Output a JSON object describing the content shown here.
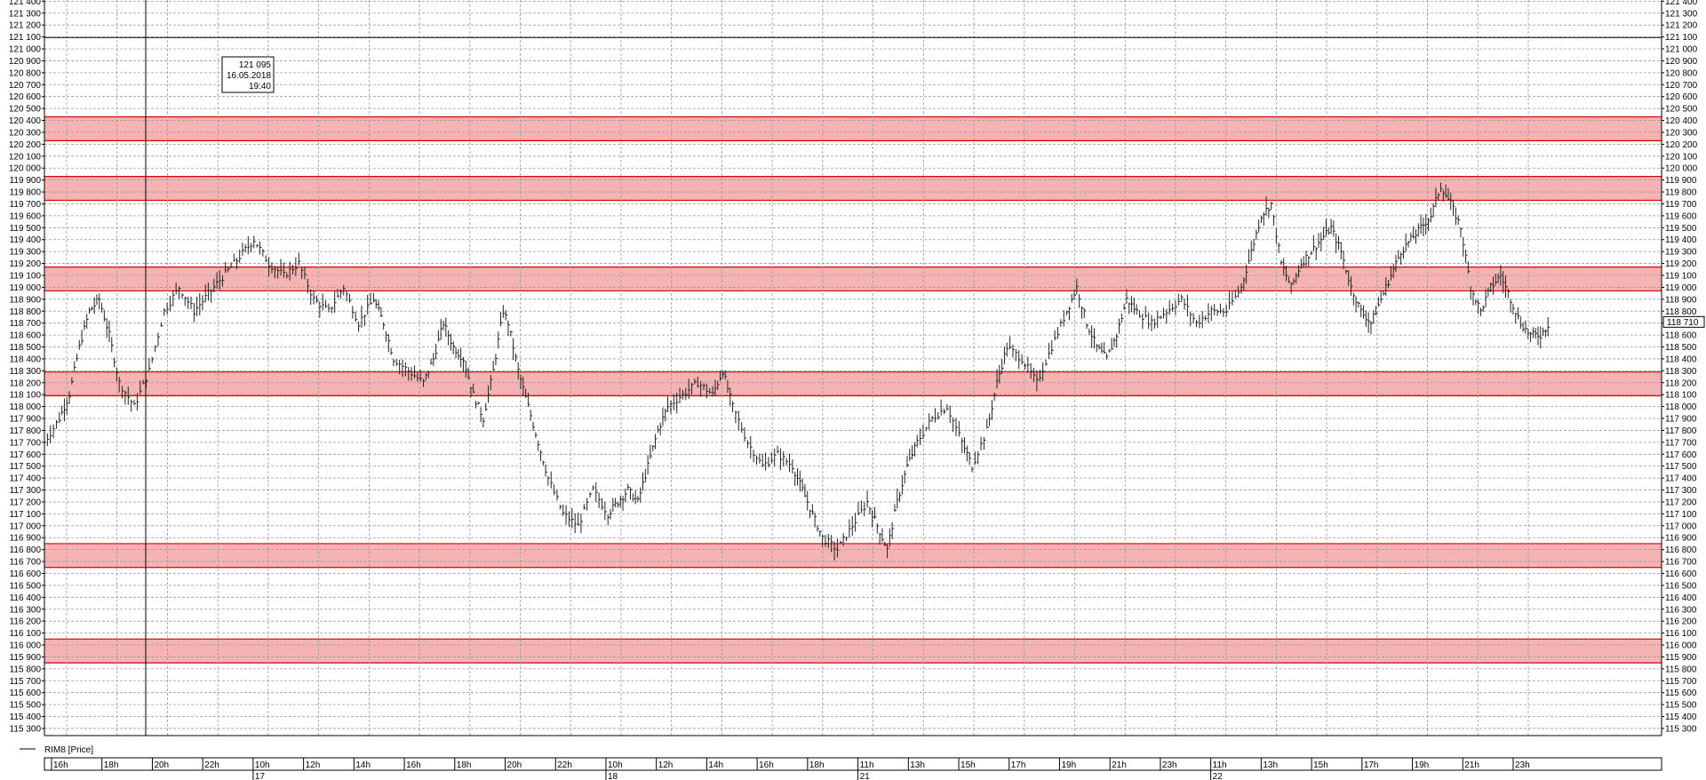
{
  "chart_data": {
    "type": "ohlc",
    "series_name": "RIM8 [Price]",
    "ylim": [
      115240,
      121410
    ],
    "y_tick_step": 100,
    "grid": true,
    "grid_style": "dashed",
    "last_price": 118710,
    "last_price_label": "118 710",
    "cursor": {
      "price": 121095,
      "date": "16.05.2018",
      "time": "19:40",
      "price_label": "121 095"
    },
    "levels": [
      {
        "low": 120230,
        "high": 120430,
        "color": "#f4a0a0"
      },
      {
        "low": 119730,
        "high": 119930,
        "color": "#f4a0a0"
      },
      {
        "low": 118970,
        "high": 119170,
        "color": "#f4a0a0"
      },
      {
        "low": 118090,
        "high": 118290,
        "color": "#f4a0a0"
      },
      {
        "low": 116650,
        "high": 116850,
        "color": "#f4a0a0"
      },
      {
        "low": 115850,
        "high": 116050,
        "color": "#f4a0a0"
      }
    ],
    "x_time_labels": [
      "16h",
      "18h",
      "20h",
      "22h",
      "10h",
      "12h",
      "14h",
      "16h",
      "18h",
      "20h",
      "22h",
      "10h",
      "12h",
      "14h",
      "16h",
      "18h",
      "11h",
      "13h",
      "15h",
      "17h",
      "19h",
      "21h",
      "23h",
      "11h",
      "13h",
      "15h",
      "17h",
      "19h",
      "21h",
      "23h"
    ],
    "x_date_labels": [
      "17",
      "18",
      "21",
      "22"
    ],
    "price_path": [
      [
        0,
        117700
      ],
      [
        3,
        117900
      ],
      [
        5,
        118100
      ],
      [
        7,
        118500
      ],
      [
        9,
        118800
      ],
      [
        11,
        118900
      ],
      [
        13,
        118600
      ],
      [
        15,
        118200
      ],
      [
        18,
        118000
      ],
      [
        21,
        118300
      ],
      [
        24,
        118800
      ],
      [
        27,
        119000
      ],
      [
        30,
        118800
      ],
      [
        34,
        119000
      ],
      [
        38,
        119200
      ],
      [
        42,
        119400
      ],
      [
        45,
        119200
      ],
      [
        48,
        119100
      ],
      [
        51,
        119200
      ],
      [
        54,
        118900
      ],
      [
        57,
        118800
      ],
      [
        60,
        119000
      ],
      [
        63,
        118700
      ],
      [
        66,
        118900
      ],
      [
        68,
        118700
      ],
      [
        70,
        118400
      ],
      [
        73,
        118300
      ],
      [
        76,
        118200
      ],
      [
        78,
        118400
      ],
      [
        80,
        118700
      ],
      [
        82,
        118500
      ],
      [
        84,
        118400
      ],
      [
        86,
        118100
      ],
      [
        88,
        117900
      ],
      [
        90,
        118300
      ],
      [
        92,
        118800
      ],
      [
        93,
        118700
      ],
      [
        95,
        118300
      ],
      [
        97,
        118000
      ],
      [
        99,
        117700
      ],
      [
        101,
        117400
      ],
      [
        104,
        117100
      ],
      [
        107,
        117000
      ],
      [
        110,
        117300
      ],
      [
        113,
        117100
      ],
      [
        115,
        117200
      ],
      [
        117,
        117300
      ],
      [
        119,
        117200
      ],
      [
        121,
        117500
      ],
      [
        123,
        117800
      ],
      [
        125,
        118000
      ],
      [
        128,
        118100
      ],
      [
        131,
        118200
      ],
      [
        134,
        118100
      ],
      [
        136,
        118300
      ],
      [
        138,
        118000
      ],
      [
        141,
        117700
      ],
      [
        144,
        117500
      ],
      [
        147,
        117600
      ],
      [
        150,
        117500
      ],
      [
        152,
        117300
      ],
      [
        154,
        117100
      ],
      [
        156,
        116900
      ],
      [
        159,
        116800
      ],
      [
        162,
        117000
      ],
      [
        165,
        117200
      ],
      [
        167,
        117000
      ],
      [
        169,
        116800
      ],
      [
        171,
        117200
      ],
      [
        173,
        117500
      ],
      [
        175,
        117700
      ],
      [
        178,
        117900
      ],
      [
        181,
        118000
      ],
      [
        184,
        117700
      ],
      [
        186,
        117500
      ],
      [
        189,
        117800
      ],
      [
        191,
        118200
      ],
      [
        193,
        118500
      ],
      [
        196,
        118400
      ],
      [
        199,
        118200
      ],
      [
        202,
        118500
      ],
      [
        205,
        118800
      ],
      [
        207,
        119000
      ],
      [
        209,
        118700
      ],
      [
        211,
        118500
      ],
      [
        213,
        118400
      ],
      [
        215,
        118600
      ],
      [
        217,
        118900
      ],
      [
        219,
        118800
      ],
      [
        222,
        118700
      ],
      [
        225,
        118800
      ],
      [
        228,
        118900
      ],
      [
        231,
        118700
      ],
      [
        234,
        118800
      ],
      [
        237,
        118800
      ],
      [
        240,
        119000
      ],
      [
        242,
        119300
      ],
      [
        244,
        119600
      ],
      [
        246,
        119700
      ],
      [
        248,
        119200
      ],
      [
        250,
        119000
      ],
      [
        252,
        119200
      ],
      [
        254,
        119300
      ],
      [
        256,
        119400
      ],
      [
        258,
        119500
      ],
      [
        260,
        119300
      ],
      [
        262,
        119000
      ],
      [
        264,
        118800
      ],
      [
        266,
        118700
      ],
      [
        268,
        118900
      ],
      [
        270,
        119100
      ],
      [
        272,
        119300
      ],
      [
        274,
        119400
      ],
      [
        276,
        119500
      ],
      [
        278,
        119600
      ],
      [
        280,
        119850
      ],
      [
        282,
        119700
      ],
      [
        284,
        119500
      ],
      [
        286,
        119000
      ],
      [
        288,
        118800
      ],
      [
        290,
        119000
      ],
      [
        292,
        119100
      ],
      [
        294,
        118900
      ],
      [
        296,
        118700
      ],
      [
        298,
        118600
      ],
      [
        300,
        118600
      ],
      [
        302,
        118710
      ]
    ]
  }
}
